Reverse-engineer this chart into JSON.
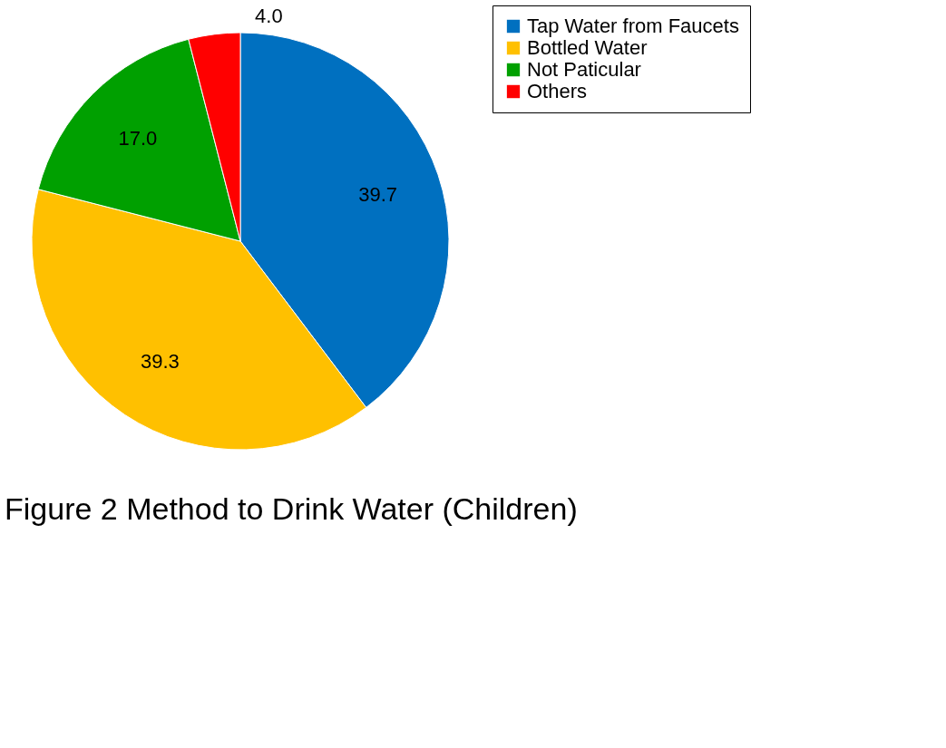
{
  "chart_data": {
    "type": "pie",
    "title": "Figure 2  Method to Drink Water (Children)",
    "categories": [
      "Tap Water from Faucets",
      "Bottled Water",
      "Not Paticular",
      "Others"
    ],
    "values": [
      39.7,
      39.3,
      17.0,
      4.0
    ],
    "colors": [
      "#0070c0",
      "#ffc000",
      "#00a000",
      "#ff0000"
    ],
    "value_labels": [
      "39.7",
      "39.3",
      "17.0",
      "4.0"
    ],
    "legend": "right"
  }
}
